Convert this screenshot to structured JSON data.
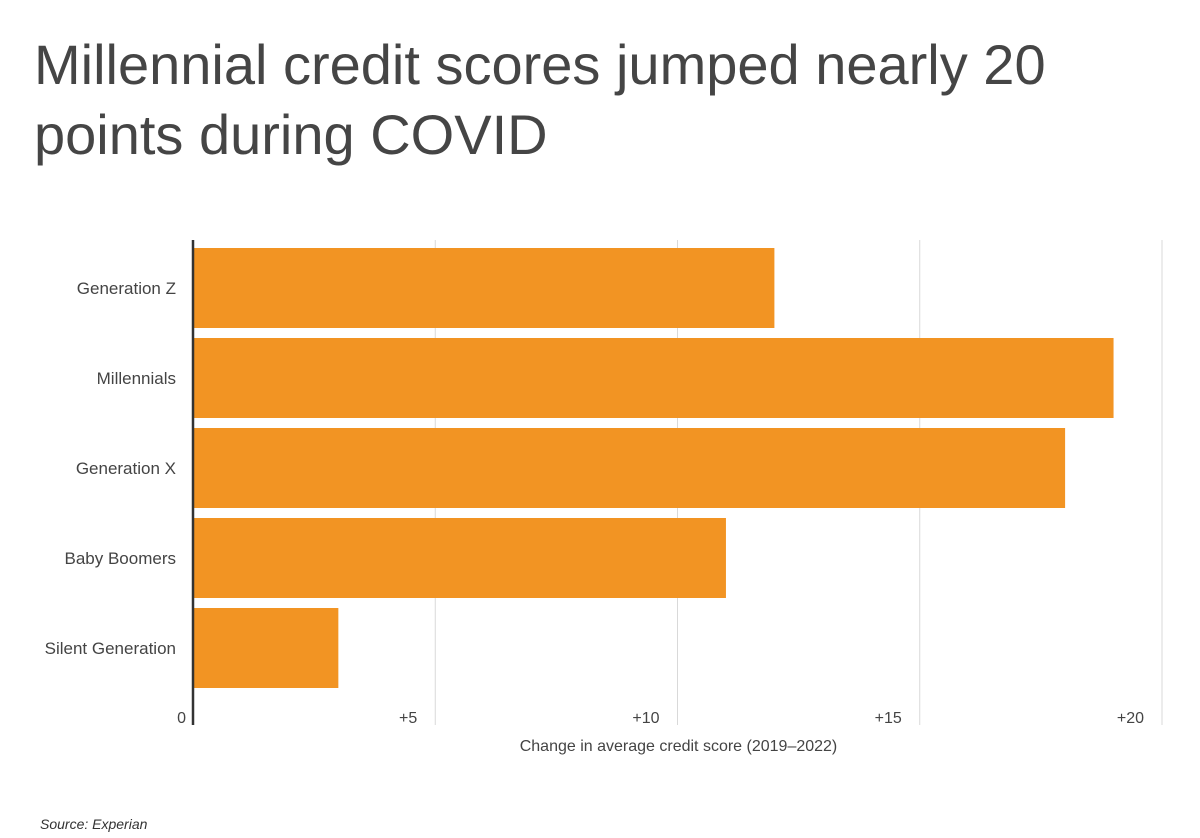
{
  "title": "Millennial credit scores jumped nearly 20 points during COVID",
  "source": "Source: Experian",
  "colors": {
    "bar": "#F29423",
    "grid": "#d9d9d9",
    "axis": "#333333",
    "text": "#444444"
  },
  "chart_data": {
    "type": "bar",
    "orientation": "horizontal",
    "categories": [
      "Generation Z",
      "Millennials",
      "Generation X",
      "Baby Boomers",
      "Silent Generation"
    ],
    "values": [
      12,
      19,
      18,
      11,
      3
    ],
    "xlabel": "Change in average credit score (2019–2022)",
    "ylabel": "",
    "xlim": [
      0,
      20
    ],
    "ticks": [
      0,
      5,
      10,
      15,
      20
    ],
    "tick_labels": [
      "0",
      "+5",
      "+10",
      "+15",
      "+20"
    ],
    "grid": true,
    "legend": "none"
  }
}
